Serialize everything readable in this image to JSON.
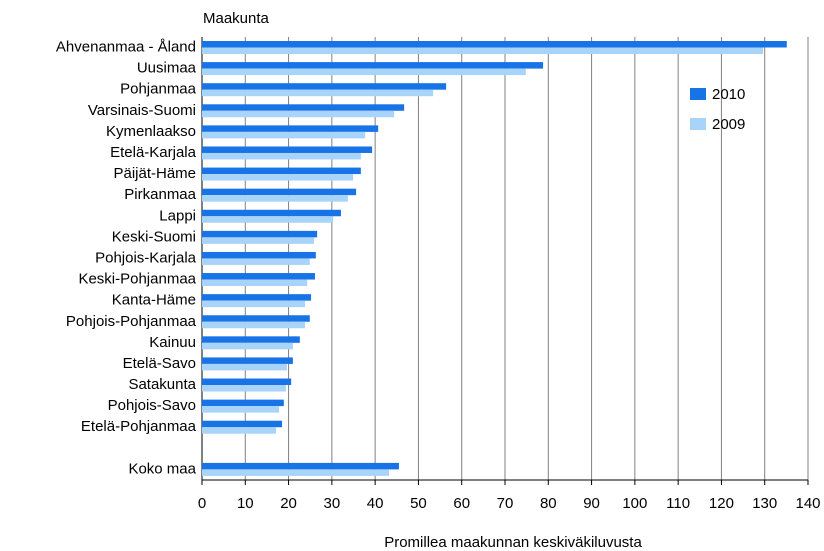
{
  "chart_data": {
    "type": "bar",
    "orientation": "horizontal",
    "y_axis_title": "Maakunta",
    "x_axis_title": "Promillea maakunnan keskiväkiluvusta",
    "categories": [
      "Ahvenanmaa - Åland",
      "Uusimaa",
      "Pohjanmaa",
      "Varsinais-Suomi",
      "Kymenlaakso",
      "Etelä-Karjala",
      "Päijät-Häme",
      "Pirkanmaa",
      "Lappi",
      "Keski-Suomi",
      "Pohjois-Karjala",
      "Keski-Pohjanmaa",
      "Kanta-Häme",
      "Pohjois-Pohjanmaa",
      "Kainuu",
      "Etelä-Savo",
      "Satakunta",
      "Pohjois-Savo",
      "Etelä-Pohjanmaa",
      null,
      "Koko maa"
    ],
    "series": [
      {
        "name": "2010",
        "color": "#1874e6",
        "values": [
          135.1,
          78.8,
          56.4,
          46.7,
          40.7,
          39.3,
          36.7,
          35.6,
          32.1,
          26.6,
          26.3,
          26.1,
          25.2,
          24.9,
          22.6,
          21.0,
          20.6,
          18.9,
          18.5,
          null,
          45.5
        ]
      },
      {
        "name": "2009",
        "color": "#a8d4fa",
        "values": [
          129.6,
          74.8,
          53.4,
          44.4,
          37.7,
          36.7,
          34.9,
          33.7,
          30.3,
          25.9,
          24.9,
          24.3,
          23.8,
          23.8,
          21.0,
          19.6,
          19.4,
          17.8,
          17.1,
          null,
          43.2
        ]
      }
    ],
    "xlim": [
      0,
      140
    ],
    "xticks": [
      0,
      10,
      20,
      30,
      40,
      50,
      60,
      70,
      80,
      90,
      100,
      110,
      120,
      130,
      140
    ],
    "grid": true,
    "legend": "upper right"
  }
}
